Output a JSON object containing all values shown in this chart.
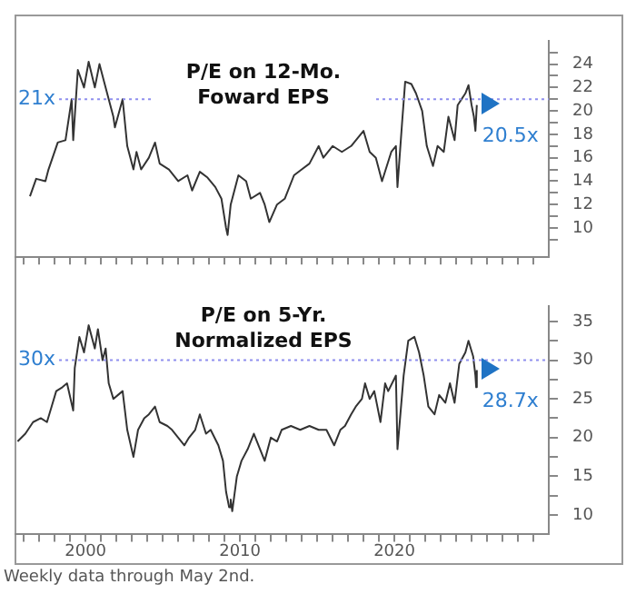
{
  "chart_data": [
    {
      "type": "line",
      "title": "P/E on 12-Mo. Foward EPS",
      "tick_labels": "y",
      "legend": false,
      "grid": false,
      "marker": "none",
      "line_style": "solid",
      "color": "#333333",
      "x": [
        1996.4,
        1996.8,
        1997.4,
        1997.6,
        1998.2,
        1998.7,
        1999.1,
        1999.2,
        1999.5,
        1999.9,
        2000.2,
        2000.6,
        2000.9,
        2001.2,
        2001.5,
        2001.8,
        2001.9,
        2002.4,
        2002.7,
        2003.1,
        2003.3,
        2003.6,
        2004.1,
        2004.5,
        2004.8,
        2005.4,
        2006.0,
        2006.6,
        2006.9,
        2007.4,
        2007.9,
        2008.4,
        2008.8,
        2009.1,
        2009.2,
        2009.4,
        2009.9,
        2010.4,
        2010.7,
        2011.3,
        2011.6,
        2011.9,
        2012.4,
        2012.9,
        2013.5,
        2014.0,
        2014.5,
        2015.1,
        2015.4,
        2016.0,
        2016.6,
        2017.2,
        2018.0,
        2018.4,
        2018.8,
        2019.2,
        2019.8,
        2020.1,
        2020.2,
        2020.5,
        2020.7,
        2021.1,
        2021.4,
        2021.8,
        2022.1,
        2022.5,
        2022.8,
        2023.2,
        2023.5,
        2023.9,
        2024.1,
        2024.6,
        2024.8,
        2025.0,
        2025.15,
        2025.25,
        2025.34
      ],
      "values": [
        12.7,
        14.2,
        14,
        15,
        17.3,
        17.5,
        21,
        17.5,
        23.5,
        22,
        24.2,
        22,
        24,
        22.5,
        21,
        19.5,
        18.6,
        21,
        17,
        15,
        16.5,
        15,
        16,
        17.3,
        15.5,
        15,
        14,
        14.5,
        13.2,
        14.8,
        14.3,
        13.5,
        12.5,
        10,
        9.4,
        12,
        14.5,
        14,
        12.5,
        13,
        12,
        10.5,
        12,
        12.5,
        14.5,
        15,
        15.5,
        17,
        16,
        17,
        16.5,
        17,
        18.3,
        16.5,
        16,
        14,
        16.5,
        17,
        13.5,
        19,
        22.5,
        22.3,
        21.5,
        20,
        17,
        15.3,
        17,
        16.5,
        19.5,
        17.5,
        20.5,
        21.5,
        22.2,
        20.5,
        19.5,
        18.3,
        20.5
      ],
      "xlim": [
        1995.4,
        2030
      ],
      "xticks": [
        {
          "value": 1996,
          "label": null
        },
        {
          "value": 1997,
          "label": null
        },
        {
          "value": 1998,
          "label": null
        },
        {
          "value": 1999,
          "label": null
        },
        {
          "value": 2000,
          "label": null
        },
        {
          "value": 2001,
          "label": null
        },
        {
          "value": 2002,
          "label": null
        },
        {
          "value": 2003,
          "label": null
        },
        {
          "value": 2004,
          "label": null
        },
        {
          "value": 2005,
          "label": null
        },
        {
          "value": 2006,
          "label": null
        },
        {
          "value": 2007,
          "label": null
        },
        {
          "value": 2008,
          "label": null
        },
        {
          "value": 2009,
          "label": null
        },
        {
          "value": 2010,
          "label": null
        },
        {
          "value": 2011,
          "label": null
        },
        {
          "value": 2012,
          "label": null
        },
        {
          "value": 2013,
          "label": null
        },
        {
          "value": 2014,
          "label": null
        },
        {
          "value": 2015,
          "label": null
        },
        {
          "value": 2016,
          "label": null
        },
        {
          "value": 2017,
          "label": null
        },
        {
          "value": 2018,
          "label": null
        },
        {
          "value": 2019,
          "label": null
        },
        {
          "value": 2020,
          "label": null
        },
        {
          "value": 2021,
          "label": null
        },
        {
          "value": 2022,
          "label": null
        },
        {
          "value": 2023,
          "label": null
        },
        {
          "value": 2024,
          "label": null
        },
        {
          "value": 2025,
          "label": null
        },
        {
          "value": 2026,
          "label": null
        },
        {
          "value": 2027,
          "label": null
        },
        {
          "value": 2028,
          "label": null
        },
        {
          "value": 2029,
          "label": null
        }
      ],
      "ylim": [
        7.5,
        26
      ],
      "yticks": [
        {
          "value": 9,
          "label": null
        },
        10,
        {
          "value": 11,
          "label": null
        },
        12,
        {
          "value": 13,
          "label": null
        },
        14,
        {
          "value": 15,
          "label": null
        },
        16,
        {
          "value": 17,
          "label": null
        },
        18,
        {
          "value": 19,
          "label": null
        },
        20,
        {
          "value": 21,
          "label": null
        },
        22,
        {
          "value": 23,
          "label": null
        },
        24,
        {
          "value": 25,
          "label": null
        }
      ],
      "ref_lines": [
        {
          "axis": "y",
          "value": 21,
          "label": "21x",
          "color": "#8f8fee",
          "line_style": "dotted"
        }
      ],
      "annotations": [
        {
          "text": "20.5x",
          "x": 2025.34,
          "y": 20.5
        }
      ]
    },
    {
      "type": "line",
      "title": "P/E on 5-Yr. Normalized EPS",
      "legend": false,
      "grid": false,
      "marker": "none",
      "line_style": "solid",
      "color": "#333333",
      "x": [
        1995.6,
        1996.1,
        1996.6,
        1997.1,
        1997.5,
        1997.8,
        1998.1,
        1998.5,
        1998.8,
        1999.2,
        1999.3,
        1999.6,
        1999.9,
        2000.2,
        2000.6,
        2000.8,
        2001.1,
        2001.3,
        2001.5,
        2001.8,
        2002.1,
        2002.4,
        2002.7,
        2003.1,
        2003.4,
        2003.8,
        2004.1,
        2004.5,
        2004.8,
        2005.3,
        2005.6,
        2006.0,
        2006.4,
        2006.7,
        2007.1,
        2007.4,
        2007.8,
        2008.1,
        2008.6,
        2008.9,
        2009.1,
        2009.3,
        2009.4,
        2009.5,
        2009.8,
        2010.1,
        2010.5,
        2010.9,
        2011.3,
        2011.6,
        2012.0,
        2012.4,
        2012.7,
        2013.3,
        2013.9,
        2014.5,
        2015.1,
        2015.6,
        2016.1,
        2016.5,
        2016.8,
        2017.2,
        2017.5,
        2017.9,
        2018.1,
        2018.4,
        2018.7,
        2019.1,
        2019.4,
        2019.6,
        2020.1,
        2020.2,
        2020.6,
        2020.9,
        2021.3,
        2021.6,
        2021.9,
        2022.2,
        2022.6,
        2022.9,
        2023.3,
        2023.6,
        2023.9,
        2024.2,
        2024.6,
        2024.8,
        2025.1,
        2025.25,
        2025.3,
        2025.34
      ],
      "values": [
        19.5,
        20.5,
        22,
        22.5,
        22,
        24,
        26,
        26.5,
        27,
        23.5,
        29,
        33,
        31,
        34.5,
        31.5,
        34,
        30,
        31.5,
        27,
        25,
        25.5,
        26,
        21,
        17.5,
        21,
        22.5,
        23,
        24,
        22,
        21.5,
        21,
        20,
        19,
        20,
        21,
        23,
        20.5,
        21,
        19,
        17,
        13,
        11,
        12,
        10.5,
        15,
        17,
        18.5,
        20.5,
        18.5,
        17,
        20,
        19.5,
        21,
        21.5,
        21,
        21.5,
        21,
        21,
        19,
        21,
        21.5,
        23,
        24,
        25,
        27,
        25,
        26,
        22,
        27,
        26,
        28,
        18.5,
        28,
        32.5,
        33,
        31,
        28,
        24,
        23,
        25.5,
        24.5,
        27,
        24.5,
        29.5,
        31,
        32.5,
        30.5,
        28,
        26.5,
        28.7
      ],
      "xlim": [
        1995.4,
        2030
      ],
      "xticks": [
        {
          "value": 1996,
          "label": null
        },
        {
          "value": 1997,
          "label": null
        },
        {
          "value": 1998,
          "label": null
        },
        {
          "value": 1999,
          "label": null
        },
        2000,
        {
          "value": 2001,
          "label": null
        },
        {
          "value": 2002,
          "label": null
        },
        {
          "value": 2003,
          "label": null
        },
        {
          "value": 2004,
          "label": null
        },
        {
          "value": 2005,
          "label": null
        },
        {
          "value": 2006,
          "label": null
        },
        {
          "value": 2007,
          "label": null
        },
        {
          "value": 2008,
          "label": null
        },
        {
          "value": 2009,
          "label": null
        },
        2010,
        {
          "value": 2011,
          "label": null
        },
        {
          "value": 2012,
          "label": null
        },
        {
          "value": 2013,
          "label": null
        },
        {
          "value": 2014,
          "label": null
        },
        {
          "value": 2015,
          "label": null
        },
        {
          "value": 2016,
          "label": null
        },
        {
          "value": 2017,
          "label": null
        },
        {
          "value": 2018,
          "label": null
        },
        {
          "value": 2019,
          "label": null
        },
        2020,
        {
          "value": 2021,
          "label": null
        },
        {
          "value": 2022,
          "label": null
        },
        {
          "value": 2023,
          "label": null
        },
        {
          "value": 2024,
          "label": null
        },
        {
          "value": 2025,
          "label": null
        },
        {
          "value": 2026,
          "label": null
        },
        {
          "value": 2027,
          "label": null
        },
        {
          "value": 2028,
          "label": null
        },
        {
          "value": 2029,
          "label": null
        }
      ],
      "ylim": [
        7.5,
        37
      ],
      "yticks": [
        10,
        {
          "value": 12.5,
          "label": null
        },
        15,
        {
          "value": 17.5,
          "label": null
        },
        20,
        {
          "value": 22.5,
          "label": null
        },
        25,
        {
          "value": 27.5,
          "label": null
        },
        30,
        {
          "value": 32.5,
          "label": null
        },
        35
      ],
      "ref_lines": [
        {
          "axis": "y",
          "value": 30,
          "label": "30x",
          "color": "#8f8fee",
          "line_style": "dotted"
        }
      ],
      "annotations": [
        {
          "text": "28.7x",
          "x": 2025.34,
          "y": 28.7
        },
        "Weekly data through May 2nd."
      ]
    }
  ]
}
